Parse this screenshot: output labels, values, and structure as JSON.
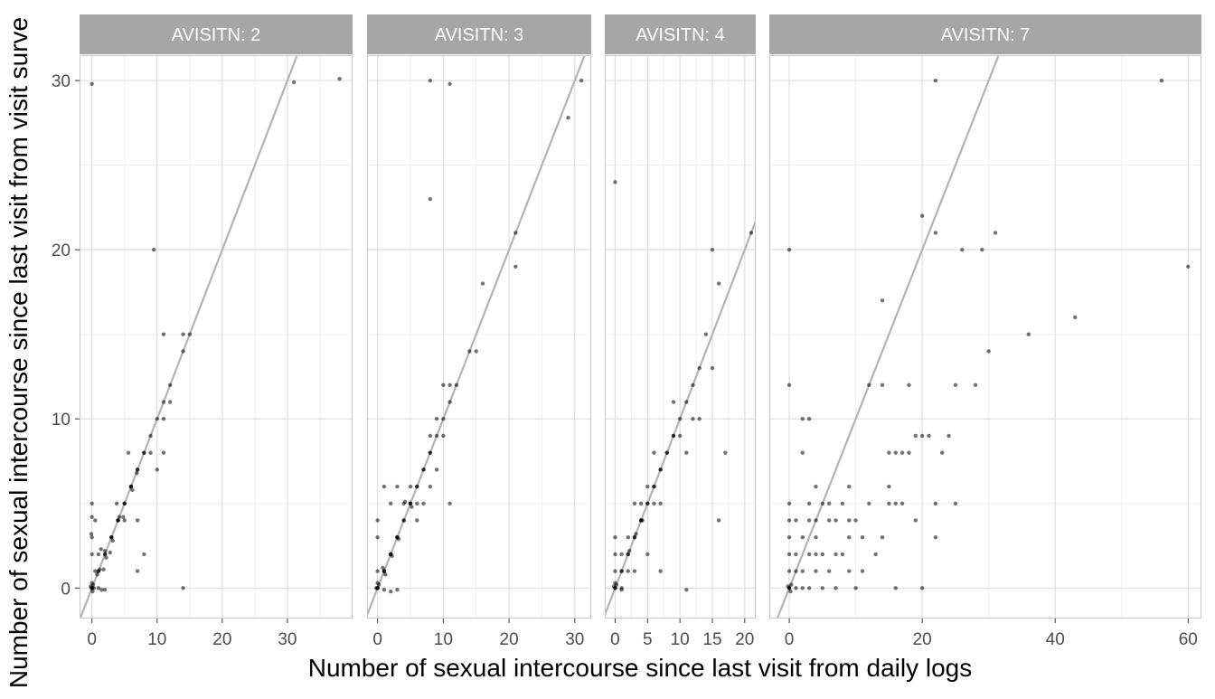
{
  "chart_data": {
    "type": "scatter",
    "title": "",
    "xlabel": "Number of sexual intercourse since last visit from daily logs",
    "ylabel": "Number of sexual intercourse since last visit from visit surve",
    "ylim": [
      -1.8,
      31.5
    ],
    "yticks": [
      0,
      10,
      20,
      30
    ],
    "grid": true,
    "reference_line": "y = x",
    "colors": {
      "strip": "#a6a6a6",
      "strip_text": "#ffffff",
      "grid_major": "#dedede",
      "grid_minor": "#efefef",
      "panel_border": "#c8c8c8",
      "ref_line": "#b3b3b3",
      "point": "#000000",
      "axis_text": "#4d4d4d",
      "title_text": "#000000"
    },
    "panels": [
      {
        "strip": "AVISITN: 2",
        "xlim": [
          -1.9,
          40
        ],
        "xticks": [
          0,
          10,
          20,
          30
        ],
        "xtick_labels": [
          "0",
          "10",
          "20",
          "30"
        ],
        "points": [
          [
            0,
            0
          ],
          [
            0,
            0
          ],
          [
            0,
            0
          ],
          [
            0.2,
            0.2
          ],
          [
            -0.2,
            0.1
          ],
          [
            0.1,
            -0.2
          ],
          [
            0,
            0
          ],
          [
            0.3,
            0
          ],
          [
            0,
            0.3
          ],
          [
            0,
            3
          ],
          [
            0,
            5
          ],
          [
            0,
            4.2
          ],
          [
            0,
            2
          ],
          [
            -0.1,
            3.2
          ],
          [
            0.5,
            4
          ],
          [
            0.5,
            1
          ],
          [
            1,
            1
          ],
          [
            1,
            1
          ],
          [
            1.2,
            1.1
          ],
          [
            0.8,
            0.8
          ],
          [
            1,
            0
          ],
          [
            1.5,
            -0.1
          ],
          [
            1,
            2
          ],
          [
            1.4,
            2.3
          ],
          [
            2,
            2
          ],
          [
            2,
            2
          ],
          [
            2,
            2.2
          ],
          [
            2.2,
            1.8
          ],
          [
            1.8,
            1.1
          ],
          [
            2,
            -0.1
          ],
          [
            3,
            3
          ],
          [
            3,
            3
          ],
          [
            3,
            3
          ],
          [
            3.2,
            2.8
          ],
          [
            2.8,
            2.1
          ],
          [
            4,
            4
          ],
          [
            4,
            4
          ],
          [
            4,
            4
          ],
          [
            4.2,
            4.2
          ],
          [
            3.8,
            5
          ],
          [
            5,
            5
          ],
          [
            5,
            5
          ],
          [
            5,
            5
          ],
          [
            5,
            4
          ],
          [
            4.8,
            4.2
          ],
          [
            6,
            6
          ],
          [
            6,
            6
          ],
          [
            6,
            6
          ],
          [
            6.2,
            5.8
          ],
          [
            5.6,
            8
          ],
          [
            7,
            7
          ],
          [
            7,
            7
          ],
          [
            6.9,
            6.8
          ],
          [
            7,
            4
          ],
          [
            7,
            1
          ],
          [
            8,
            8
          ],
          [
            8,
            8
          ],
          [
            8,
            2
          ],
          [
            9,
            9
          ],
          [
            9,
            8
          ],
          [
            10,
            10
          ],
          [
            10,
            7
          ],
          [
            11,
            11
          ],
          [
            11,
            8
          ],
          [
            11,
            15
          ],
          [
            11,
            10
          ],
          [
            12,
            12
          ],
          [
            12,
            11
          ],
          [
            14,
            14
          ],
          [
            14,
            15
          ],
          [
            15,
            15
          ],
          [
            9.5,
            20
          ],
          [
            14,
            0
          ],
          [
            0,
            29.8
          ],
          [
            31,
            29.9
          ],
          [
            38,
            30.1
          ]
        ]
      },
      {
        "strip": "AVISITN: 3",
        "xlim": [
          -1.6,
          32.5
        ],
        "xticks": [
          0,
          10,
          20,
          30
        ],
        "xtick_labels": [
          "0",
          "10",
          "20",
          "30"
        ],
        "points": [
          [
            0,
            0
          ],
          [
            0,
            0
          ],
          [
            0,
            0
          ],
          [
            0.2,
            0.2
          ],
          [
            -0.2,
            0
          ],
          [
            0,
            0.3
          ],
          [
            0,
            4
          ],
          [
            0,
            3
          ],
          [
            0,
            1
          ],
          [
            1,
            1
          ],
          [
            1,
            1
          ],
          [
            1,
            1
          ],
          [
            1.2,
            0.8
          ],
          [
            0.8,
            1.2
          ],
          [
            1,
            6
          ],
          [
            1,
            -0.1
          ],
          [
            2,
            2
          ],
          [
            2,
            2
          ],
          [
            2,
            2
          ],
          [
            2.2,
            1.9
          ],
          [
            2,
            5
          ],
          [
            2,
            -0.2
          ],
          [
            3,
            3
          ],
          [
            3,
            3
          ],
          [
            3,
            3
          ],
          [
            3.2,
            2.9
          ],
          [
            3,
            -0.1
          ],
          [
            3,
            6
          ],
          [
            4,
            4
          ],
          [
            4,
            4
          ],
          [
            4,
            5
          ],
          [
            4.2,
            5.1
          ],
          [
            5,
            5
          ],
          [
            5,
            5
          ],
          [
            5,
            5
          ],
          [
            5.2,
            4.8
          ],
          [
            5,
            6
          ],
          [
            6,
            6
          ],
          [
            6,
            6
          ],
          [
            6,
            4
          ],
          [
            6,
            5
          ],
          [
            7,
            7
          ],
          [
            7,
            7
          ],
          [
            7,
            5
          ],
          [
            8,
            8
          ],
          [
            8,
            8
          ],
          [
            8,
            9
          ],
          [
            8,
            6
          ],
          [
            9,
            9
          ],
          [
            9,
            10
          ],
          [
            9,
            7
          ],
          [
            10,
            10
          ],
          [
            10,
            9
          ],
          [
            10,
            12
          ],
          [
            11,
            11
          ],
          [
            11,
            5
          ],
          [
            11,
            12
          ],
          [
            12,
            12
          ],
          [
            14,
            14
          ],
          [
            15,
            14
          ],
          [
            16,
            18
          ],
          [
            21,
            19
          ],
          [
            21,
            21
          ],
          [
            8,
            23
          ],
          [
            8,
            30
          ],
          [
            11,
            29.8
          ],
          [
            29,
            27.8
          ],
          [
            31,
            30
          ]
        ]
      },
      {
        "strip": "AVISITN: 4",
        "xlim": [
          -1.6,
          21.7
        ],
        "xticks": [
          0,
          5,
          10,
          15,
          20
        ],
        "xtick_labels": [
          "0",
          "5",
          "10",
          "15",
          "20"
        ],
        "points": [
          [
            0,
            0
          ],
          [
            0,
            0
          ],
          [
            0,
            0
          ],
          [
            0.2,
            0.2
          ],
          [
            -0.2,
            0.1
          ],
          [
            0,
            0.3
          ],
          [
            0,
            1
          ],
          [
            0,
            2
          ],
          [
            0,
            3
          ],
          [
            1,
            1
          ],
          [
            1,
            1
          ],
          [
            1,
            0
          ],
          [
            1,
            2
          ],
          [
            1,
            -0.1
          ],
          [
            2,
            2
          ],
          [
            2,
            2
          ],
          [
            2,
            1
          ],
          [
            2,
            3
          ],
          [
            2.2,
            2.2
          ],
          [
            3,
            3
          ],
          [
            3,
            3
          ],
          [
            3,
            1
          ],
          [
            3,
            5
          ],
          [
            3.2,
            3.2
          ],
          [
            4,
            4
          ],
          [
            4,
            4
          ],
          [
            4,
            4
          ],
          [
            4.2,
            4
          ],
          [
            4,
            5
          ],
          [
            5,
            5
          ],
          [
            5,
            5
          ],
          [
            5,
            6
          ],
          [
            5,
            2
          ],
          [
            6,
            6
          ],
          [
            6,
            6
          ],
          [
            6,
            5
          ],
          [
            6,
            8
          ],
          [
            7,
            7
          ],
          [
            7,
            7
          ],
          [
            7,
            1
          ],
          [
            7,
            5
          ],
          [
            8,
            8
          ],
          [
            8,
            8
          ],
          [
            9,
            9
          ],
          [
            9,
            9
          ],
          [
            9,
            11
          ],
          [
            10,
            10
          ],
          [
            10,
            9
          ],
          [
            11,
            11
          ],
          [
            11,
            8
          ],
          [
            11,
            -0.1
          ],
          [
            12,
            12
          ],
          [
            12,
            10
          ],
          [
            13,
            13
          ],
          [
            13,
            10
          ],
          [
            14,
            15
          ],
          [
            15,
            13
          ],
          [
            15,
            20
          ],
          [
            16,
            18
          ],
          [
            16,
            4
          ],
          [
            17,
            8
          ],
          [
            21,
            21
          ],
          [
            0,
            24
          ]
        ]
      },
      {
        "strip": "AVISITN: 7",
        "xlim": [
          -3,
          62
        ],
        "xticks": [
          0,
          20,
          40,
          60
        ],
        "xtick_labels": [
          "0",
          "20",
          "40",
          "60"
        ],
        "points": [
          [
            0,
            0
          ],
          [
            0,
            0
          ],
          [
            0,
            0
          ],
          [
            0.3,
            0.2
          ],
          [
            -0.2,
            0.1
          ],
          [
            0.2,
            -0.2
          ],
          [
            0,
            1
          ],
          [
            0,
            2
          ],
          [
            0,
            3
          ],
          [
            0,
            4
          ],
          [
            0,
            5
          ],
          [
            0,
            12
          ],
          [
            0,
            20
          ],
          [
            1,
            0
          ],
          [
            1,
            1
          ],
          [
            1,
            2
          ],
          [
            1,
            4
          ],
          [
            2,
            0
          ],
          [
            2,
            1
          ],
          [
            2,
            3
          ],
          [
            2,
            8
          ],
          [
            2,
            10
          ],
          [
            3,
            0
          ],
          [
            3,
            2
          ],
          [
            3,
            4
          ],
          [
            3,
            5
          ],
          [
            3,
            10
          ],
          [
            4,
            1
          ],
          [
            4,
            2
          ],
          [
            4,
            3
          ],
          [
            4,
            4
          ],
          [
            4,
            6
          ],
          [
            5,
            0
          ],
          [
            5,
            2
          ],
          [
            5,
            5
          ],
          [
            6,
            1
          ],
          [
            6,
            4
          ],
          [
            6,
            5
          ],
          [
            7,
            0
          ],
          [
            7,
            2
          ],
          [
            7,
            4
          ],
          [
            8,
            2
          ],
          [
            8,
            5
          ],
          [
            9,
            1
          ],
          [
            9,
            3
          ],
          [
            9,
            4
          ],
          [
            9,
            6
          ],
          [
            10,
            4
          ],
          [
            10,
            0
          ],
          [
            11,
            1
          ],
          [
            11,
            3
          ],
          [
            12,
            5
          ],
          [
            12,
            12
          ],
          [
            13,
            2
          ],
          [
            14,
            3
          ],
          [
            14,
            17
          ],
          [
            14,
            12
          ],
          [
            15,
            5
          ],
          [
            15,
            6
          ],
          [
            15,
            8
          ],
          [
            16,
            0
          ],
          [
            16,
            5
          ],
          [
            16,
            8
          ],
          [
            17,
            5
          ],
          [
            17,
            8
          ],
          [
            18,
            8
          ],
          [
            18,
            12
          ],
          [
            19,
            4
          ],
          [
            19,
            9
          ],
          [
            20,
            9
          ],
          [
            20,
            0
          ],
          [
            20,
            22
          ],
          [
            21,
            9
          ],
          [
            22,
            3
          ],
          [
            22,
            5
          ],
          [
            22,
            21
          ],
          [
            22,
            30
          ],
          [
            23,
            8
          ],
          [
            24,
            9
          ],
          [
            25,
            5
          ],
          [
            25,
            12
          ],
          [
            26,
            20
          ],
          [
            28,
            12
          ],
          [
            29,
            20
          ],
          [
            30,
            14
          ],
          [
            31,
            21
          ],
          [
            36,
            15
          ],
          [
            43,
            16
          ],
          [
            56,
            30
          ],
          [
            60,
            19
          ]
        ]
      }
    ]
  }
}
